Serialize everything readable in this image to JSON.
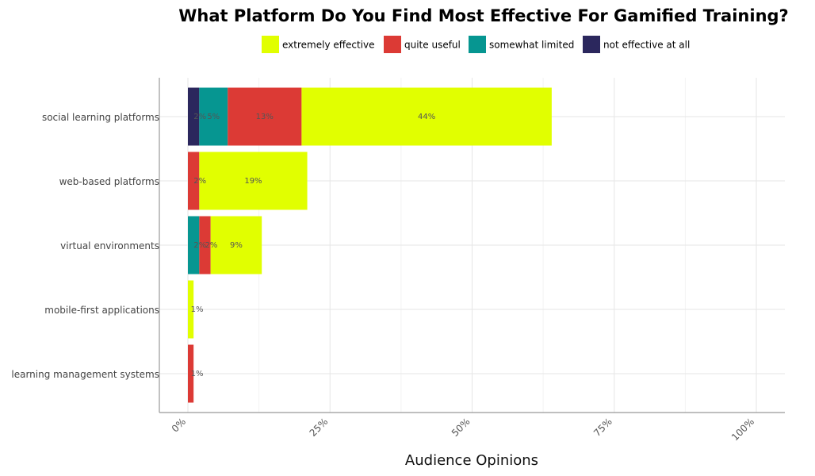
{
  "chart_data": {
    "type": "bar",
    "orientation": "horizontal",
    "stacked": true,
    "title": "What Platform Do You Find Most Effective For Gamified Training?",
    "xlabel": "Audience Opinions",
    "ylabel": "",
    "xlim": [
      0,
      100
    ],
    "x_ticks": [
      {
        "value": 0,
        "label": "0%"
      },
      {
        "value": 25,
        "label": "25%"
      },
      {
        "value": 50,
        "label": "50%"
      },
      {
        "value": 75,
        "label": "75%"
      },
      {
        "value": 100,
        "label": "100%"
      }
    ],
    "grid": true,
    "legend_position": "top",
    "categories": [
      "social learning platforms",
      "web-based platforms",
      "virtual environments",
      "mobile-first applications",
      "learning management systems"
    ],
    "stack_order": [
      "not effective at all",
      "somewhat limited",
      "quite useful",
      "extremely effective"
    ],
    "series": [
      {
        "name": "extremely effective",
        "color": "#e1ff00",
        "values": [
          44,
          19,
          9,
          1,
          0
        ],
        "labels": [
          "44%",
          "19%",
          "9%",
          "1%",
          ""
        ]
      },
      {
        "name": "quite useful",
        "color": "#dc3a35",
        "values": [
          13,
          2,
          2,
          0,
          1
        ],
        "labels": [
          "13%",
          "2%",
          "2%",
          "",
          "1%"
        ]
      },
      {
        "name": "somewhat limited",
        "color": "#069691",
        "values": [
          5,
          0,
          2,
          0,
          0
        ],
        "labels": [
          "5%",
          "",
          "2%",
          "",
          ""
        ]
      },
      {
        "name": "not effective at all",
        "color": "#2b275d",
        "values": [
          2,
          0,
          0,
          0,
          0
        ],
        "labels": [
          "2%",
          "",
          "",
          "",
          ""
        ]
      }
    ]
  }
}
